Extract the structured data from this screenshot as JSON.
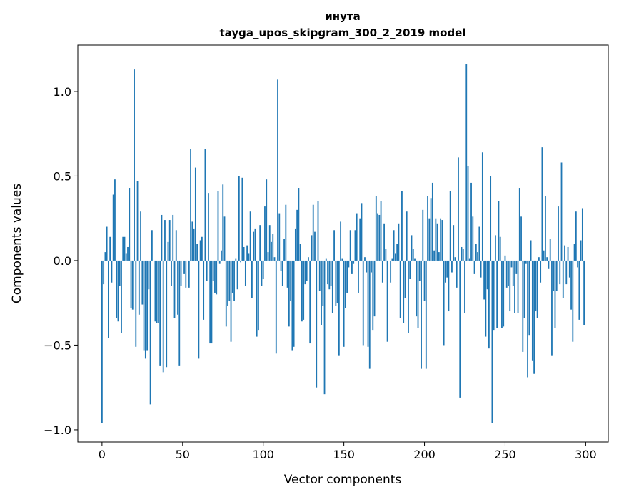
{
  "chart_data": {
    "type": "bar",
    "title": "инута",
    "subtitle": "tayga_upos_skipgram_300_2_2019 model",
    "xlabel": "Vector components",
    "ylabel": "Components values",
    "xlim": [
      -15,
      314
    ],
    "ylim": [
      -1.072,
      1.274
    ],
    "xticks": [
      0,
      50,
      100,
      150,
      200,
      250,
      300
    ],
    "xtick_labels": [
      "0",
      "50",
      "100",
      "150",
      "200",
      "250",
      "300"
    ],
    "yticks": [
      1.0,
      0.5,
      0.0,
      -0.5,
      -1.0
    ],
    "ytick_labels": [
      "1.0",
      "0.5",
      "0.0",
      "−0.5",
      "−1.0"
    ],
    "grid": false,
    "color": "#1f77b4",
    "values": [
      -0.96,
      -0.14,
      0.05,
      0.2,
      -0.46,
      0.14,
      -0.13,
      0.39,
      0.48,
      -0.34,
      -0.36,
      -0.15,
      -0.43,
      0.14,
      0.14,
      0.04,
      0.08,
      0.43,
      -0.28,
      -0.29,
      1.13,
      -0.51,
      0.47,
      -0.32,
      0.29,
      -0.26,
      -0.53,
      -0.58,
      -0.53,
      -0.17,
      -0.85,
      0.18,
      0.0,
      -0.36,
      -0.37,
      -0.37,
      -0.62,
      0.27,
      -0.66,
      0.24,
      -0.63,
      0.11,
      0.24,
      -0.15,
      0.27,
      -0.34,
      0.18,
      -0.32,
      -0.62,
      -0.15,
      0.0,
      -0.08,
      -0.16,
      0.0,
      -0.16,
      0.66,
      0.23,
      0.19,
      0.55,
      0.1,
      -0.58,
      0.12,
      0.14,
      -0.35,
      0.66,
      -0.12,
      0.4,
      -0.49,
      -0.49,
      -0.12,
      -0.19,
      -0.2,
      0.41,
      -0.02,
      0.06,
      0.45,
      0.26,
      -0.39,
      -0.27,
      -0.24,
      -0.48,
      -0.19,
      -0.24,
      0.01,
      -0.17,
      0.5,
      -0.01,
      0.49,
      0.08,
      -0.15,
      0.09,
      0.04,
      0.29,
      -0.22,
      0.17,
      0.19,
      -0.45,
      -0.41,
      0.21,
      -0.15,
      -0.11,
      0.32,
      0.48,
      0.05,
      0.21,
      0.11,
      0.16,
      0.02,
      -0.55,
      1.07,
      0.28,
      -0.06,
      -0.15,
      0.13,
      0.33,
      -0.16,
      -0.39,
      -0.24,
      -0.53,
      -0.51,
      0.19,
      0.3,
      0.43,
      0.1,
      -0.36,
      -0.35,
      -0.14,
      -0.12,
      0.02,
      -0.49,
      0.15,
      0.33,
      0.17,
      -0.75,
      0.35,
      -0.18,
      -0.38,
      -0.27,
      -0.79,
      0.01,
      -0.14,
      -0.17,
      -0.15,
      -0.31,
      0.18,
      -0.27,
      -0.25,
      -0.56,
      0.23,
      0.01,
      -0.51,
      -0.28,
      -0.19,
      -0.04,
      0.18,
      -0.08,
      -0.02,
      0.18,
      0.28,
      -0.19,
      0.25,
      0.34,
      -0.5,
      0.02,
      -0.07,
      -0.51,
      -0.64,
      -0.07,
      -0.41,
      -0.33,
      0.38,
      0.28,
      0.27,
      0.35,
      -0.13,
      0.22,
      0.07,
      -0.48,
      0.0,
      -0.13,
      0.01,
      0.18,
      0.04,
      0.1,
      0.22,
      -0.34,
      0.41,
      -0.37,
      -0.22,
      0.29,
      -0.43,
      -0.11,
      0.15,
      0.07,
      0.01,
      -0.33,
      -0.4,
      -0.12,
      -0.64,
      0.3,
      -0.24,
      -0.64,
      0.38,
      0.25,
      0.37,
      0.46,
      0.06,
      0.25,
      0.22,
      0.05,
      0.25,
      0.24,
      -0.5,
      -0.13,
      -0.1,
      -0.3,
      0.41,
      -0.07,
      0.21,
      0.02,
      -0.16,
      0.61,
      -0.81,
      0.08,
      0.07,
      -0.31,
      1.16,
      0.56,
      0.01,
      0.46,
      0.26,
      -0.08,
      0.1,
      0.05,
      0.2,
      -0.1,
      0.64,
      -0.23,
      -0.45,
      -0.17,
      -0.52,
      0.5,
      -0.96,
      -0.41,
      0.15,
      -0.4,
      0.35,
      0.14,
      -0.4,
      -0.39,
      0.03,
      -0.16,
      -0.15,
      -0.3,
      -0.04,
      -0.15,
      -0.31,
      -0.08,
      -0.31,
      0.43,
      0.26,
      -0.54,
      -0.34,
      -0.02,
      -0.69,
      -0.44,
      0.12,
      -0.59,
      -0.67,
      -0.3,
      -0.34,
      0.02,
      -0.13,
      0.67,
      0.06,
      0.38,
      0.02,
      -0.05,
      0.13,
      -0.56,
      -0.18,
      -0.4,
      -0.18,
      0.32,
      -0.14,
      0.58,
      -0.22,
      0.09,
      -0.14,
      0.08,
      -0.1,
      -0.29,
      -0.48,
      0.1,
      0.29,
      -0.04,
      -0.35,
      0.12,
      0.31,
      -0.38
    ]
  }
}
